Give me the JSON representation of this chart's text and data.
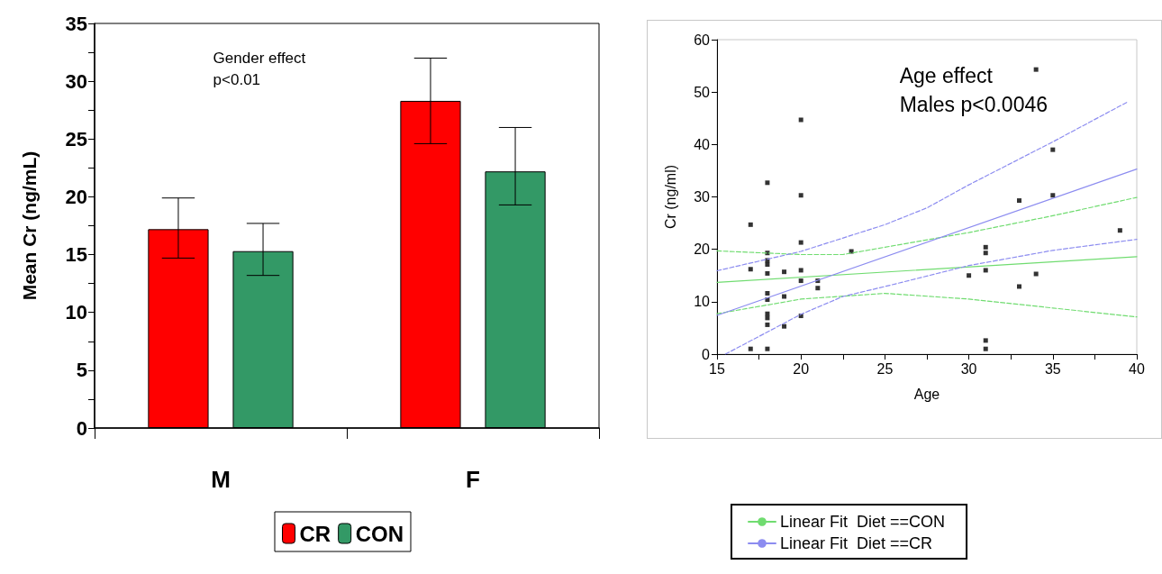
{
  "chart_data": [
    {
      "type": "bar",
      "ylabel": "Mean Cr (ng/mL)",
      "categories": [
        "M",
        "F"
      ],
      "series": [
        {
          "name": "CR",
          "color": "#ff0000",
          "values": [
            17.2,
            28.3
          ],
          "errors": [
            [
              14.7,
              19.9
            ],
            [
              24.6,
              32.0
            ]
          ]
        },
        {
          "name": "CON",
          "color": "#339966",
          "values": [
            15.3,
            22.2
          ],
          "errors": [
            [
              13.2,
              17.7
            ],
            [
              19.3,
              26.0
            ]
          ]
        }
      ],
      "ylim": [
        0,
        35
      ],
      "yticks": [
        0,
        {
          "value": 2.5,
          "label": null
        },
        5,
        {
          "value": 7.5,
          "label": null
        },
        10,
        {
          "value": 12.5,
          "label": null
        },
        15,
        {
          "value": 17.5,
          "label": null
        },
        20,
        {
          "value": 22.5,
          "label": null
        },
        25,
        {
          "value": 27.5,
          "label": null
        },
        30,
        {
          "value": 32.5,
          "label": null
        },
        35
      ],
      "annotations": [
        "Gender effect",
        "p<0.01"
      ],
      "legend": "bottom"
    },
    {
      "type": "scatter",
      "xlabel": "Age",
      "ylabel": "Cr (ng/ml)",
      "annotations": [
        "Age effect",
        "Males p<0.0046"
      ],
      "series": [
        {
          "type": "scatter",
          "color": "#000000",
          "marker": "square",
          "x": [
            17,
            17,
            17,
            18,
            18,
            18,
            18,
            18,
            18,
            18,
            18,
            18,
            18,
            18,
            19,
            19,
            19,
            20,
            20,
            20,
            20,
            20,
            20,
            21,
            21,
            23,
            30,
            31,
            31,
            31,
            31,
            31,
            33,
            33,
            34,
            34,
            35,
            35,
            39
          ],
          "values": [
            24.7,
            16.2,
            1.0,
            32.7,
            19.3,
            17.9,
            17.1,
            15.4,
            11.6,
            10.4,
            7.7,
            6.9,
            5.6,
            1.0,
            15.7,
            11.0,
            5.3,
            44.7,
            30.3,
            21.3,
            16.0,
            14.0,
            7.3,
            14.0,
            12.6,
            19.6,
            15.0,
            20.4,
            19.3,
            16.0,
            2.6,
            1.0,
            29.3,
            12.9,
            54.3,
            15.3,
            39.0,
            30.3,
            23.6
          ]
        },
        {
          "type": "line",
          "name": "Linear Fit  Diet ==CON",
          "color": "#70dc70",
          "x": [
            15,
            40
          ],
          "values": [
            13.7,
            18.6
          ]
        },
        {
          "type": "line",
          "color": "#70dc70",
          "line_style": "dashed",
          "x": [
            15,
            20,
            22.5,
            25,
            30,
            35,
            40
          ],
          "values": [
            19.7,
            19.0,
            19.0,
            20.4,
            23.2,
            26.4,
            29.9
          ]
        },
        {
          "type": "line",
          "color": "#70dc70",
          "line_style": "dashed",
          "x": [
            15,
            20,
            25,
            30,
            35,
            40
          ],
          "values": [
            7.7,
            10.5,
            11.6,
            10.5,
            8.8,
            7.1
          ]
        },
        {
          "type": "line",
          "name": "Linear Fit  Diet ==CR",
          "color": "#8c8cf0",
          "x": [
            15,
            40
          ],
          "values": [
            7.4,
            35.3
          ]
        },
        {
          "type": "line",
          "color": "#8c8cf0",
          "line_style": "dashed",
          "x": [
            15,
            20,
            25,
            27.5,
            30,
            35,
            39.5
          ],
          "values": [
            15.9,
            19.6,
            24.7,
            27.9,
            32.3,
            40.5,
            48.2
          ]
        },
        {
          "type": "line",
          "color": "#8c8cf0",
          "line_style": "dashed",
          "x": [
            15.5,
            20,
            22.5,
            25,
            30,
            35,
            40
          ],
          "values": [
            0,
            7.6,
            11.0,
            12.9,
            16.9,
            19.8,
            21.9
          ]
        }
      ],
      "xlim": [
        15,
        40
      ],
      "xticks": [
        15,
        {
          "value": 17.5,
          "label": null
        },
        20,
        {
          "value": 22.5,
          "label": null
        },
        25,
        {
          "value": 27.5,
          "label": null
        },
        30,
        {
          "value": 32.5,
          "label": null
        },
        35,
        {
          "value": 37.5,
          "label": null
        },
        40
      ],
      "ylim": [
        0,
        60
      ],
      "yticks": [
        0,
        10,
        20,
        30,
        40,
        50,
        60
      ],
      "legend": "bottom",
      "line_style": "solid"
    }
  ]
}
